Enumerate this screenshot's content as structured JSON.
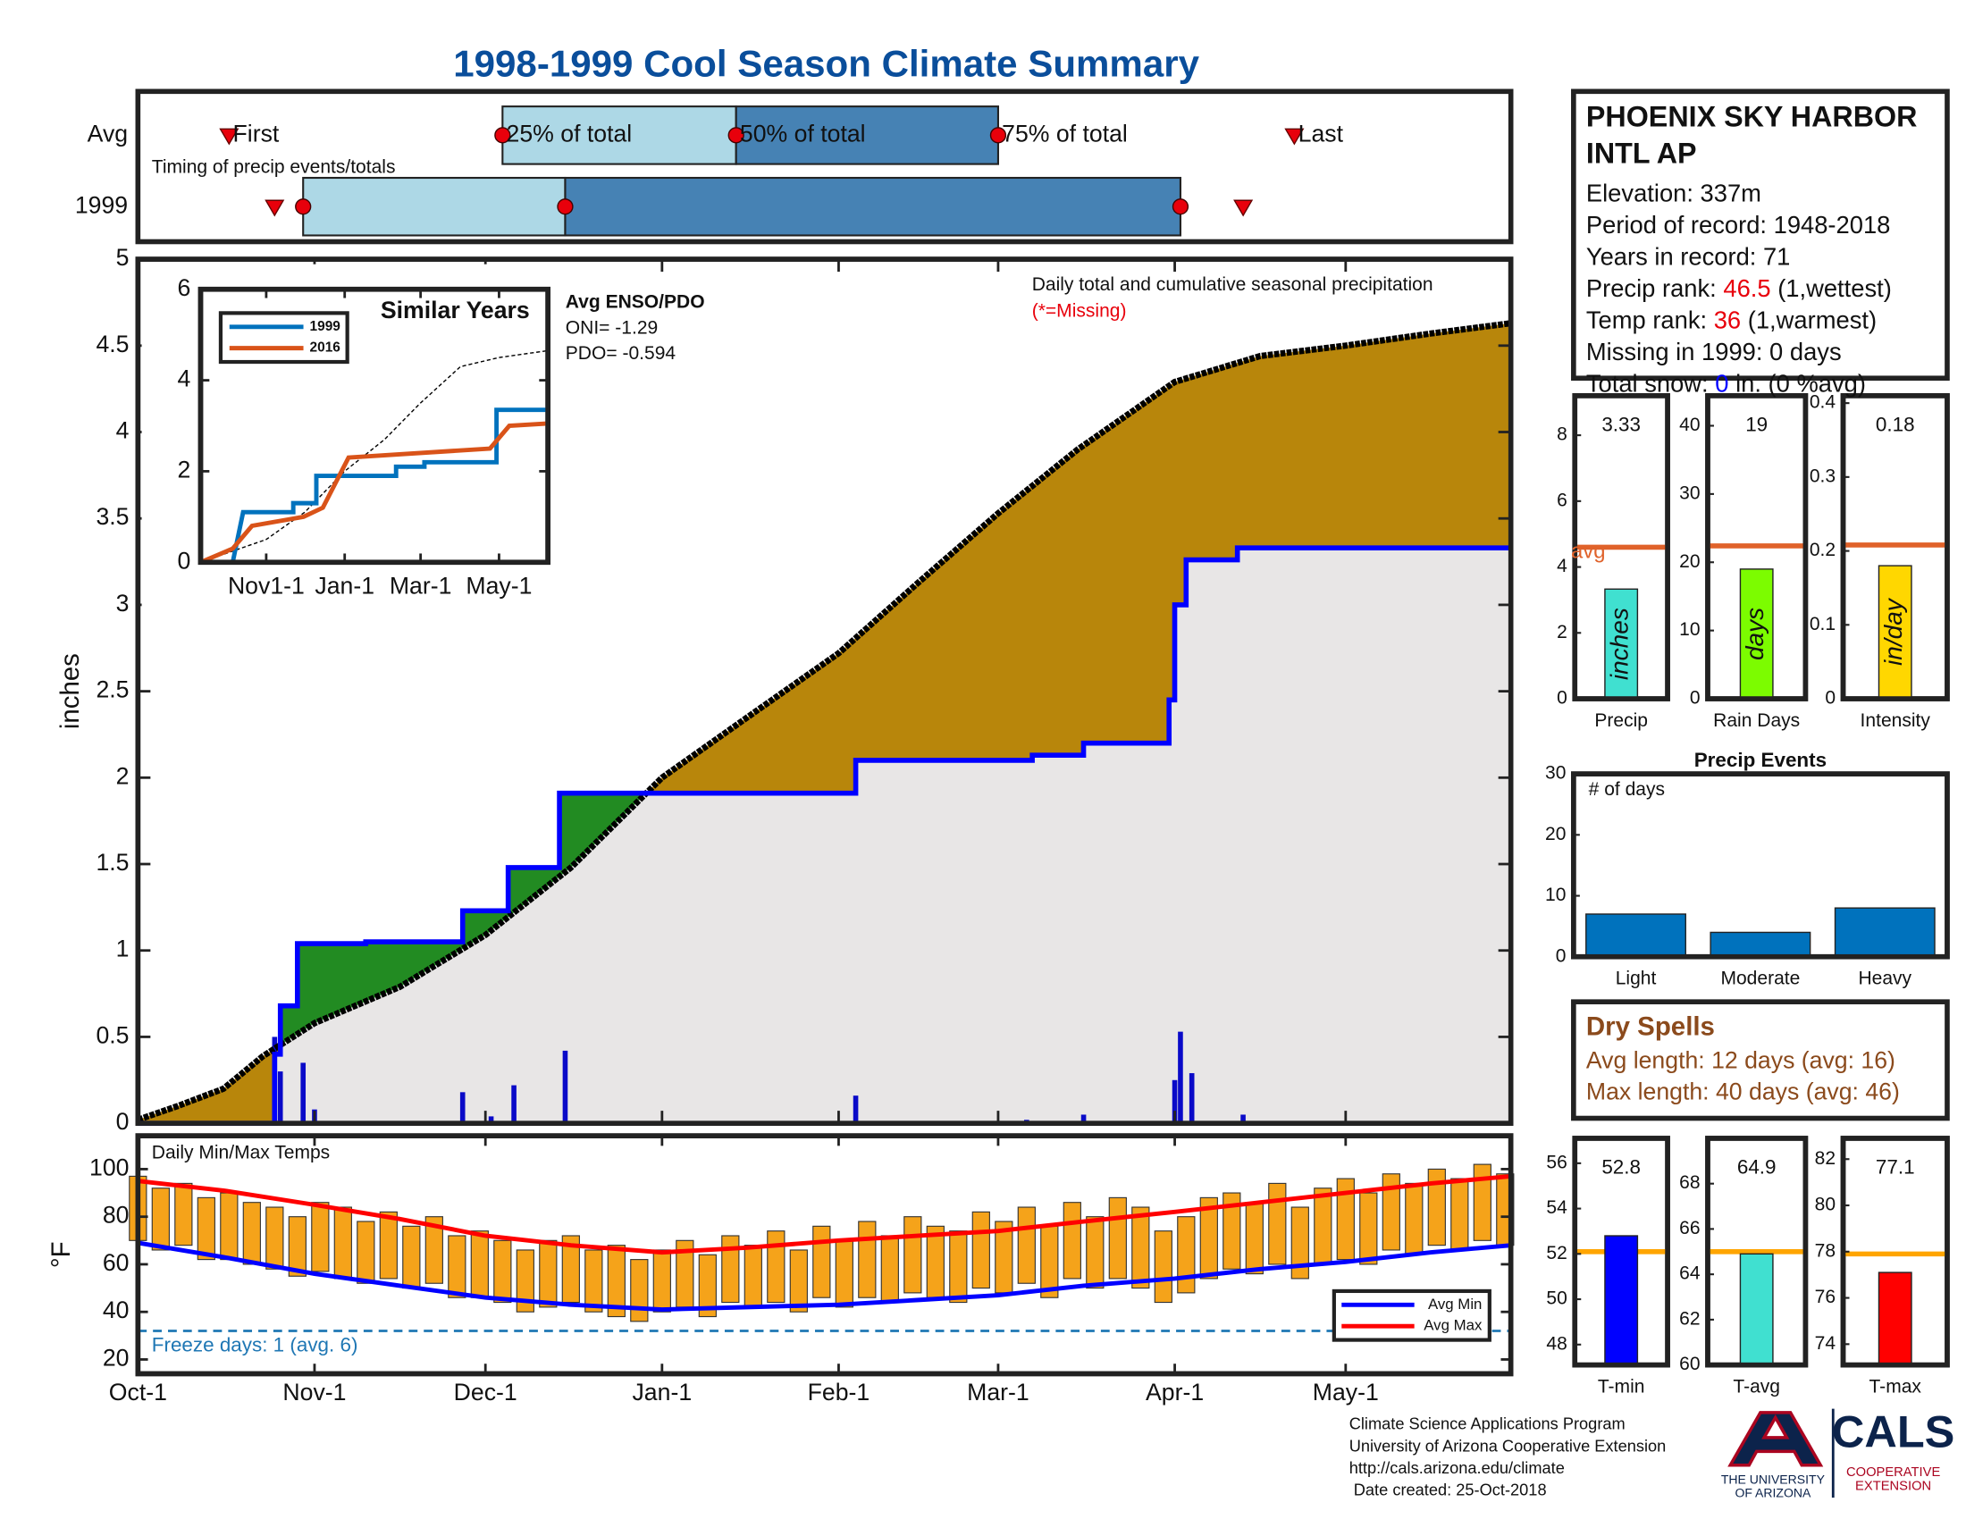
{
  "title": "1998-1999 Cool Season Climate Summary",
  "chart_data": [
    {
      "type": "timeline",
      "annotation": "Timing of precip events/totals",
      "xlim": [
        0,
        241
      ],
      "labels": [
        "First",
        "25% of total",
        "50% of total",
        "75% of total",
        "Last"
      ],
      "series": [
        {
          "name": "Avg",
          "values": [
            16,
            64,
            105,
            151,
            203
          ]
        },
        {
          "name": "1999",
          "values": [
            24,
            29,
            75,
            183,
            194
          ]
        }
      ],
      "colors": [
        "#add8e6",
        "#4682b4"
      ],
      "marker_color": "#e8000b"
    },
    {
      "type": "area",
      "ylabel": "inches",
      "annotation": "Daily total and cumulative seasonal precipitation",
      "note": "(*=Missing)",
      "xlim": [
        0,
        241
      ],
      "ylim": [
        0,
        5
      ],
      "yticks": [
        0,
        0.5,
        1,
        1.5,
        2,
        2.5,
        3,
        3.5,
        4,
        4.5,
        5
      ],
      "average": {
        "color": "#000000",
        "x": [
          0,
          7,
          15,
          22,
          31,
          46,
          61,
          76,
          92,
          107,
          123,
          137,
          151,
          165,
          182,
          197,
          212,
          227,
          241
        ],
        "values": [
          0.02,
          0.1,
          0.2,
          0.39,
          0.58,
          0.79,
          1.09,
          1.48,
          2.0,
          2.35,
          2.72,
          3.13,
          3.53,
          3.9,
          4.29,
          4.44,
          4.5,
          4.57,
          4.63
        ]
      },
      "cumulative": {
        "color": "#0000ff",
        "x": [
          0,
          24,
          24,
          25,
          25,
          28,
          28,
          40,
          40,
          57,
          57,
          65,
          65,
          74,
          74,
          126,
          126,
          157,
          157,
          166,
          166,
          181,
          181,
          182,
          182,
          184,
          184,
          193,
          193,
          241
        ],
        "values": [
          0,
          0,
          0.4,
          0.4,
          0.68,
          0.68,
          1.04,
          1.04,
          1.05,
          1.05,
          1.23,
          1.23,
          1.48,
          1.48,
          1.91,
          1.91,
          2.1,
          2.1,
          2.13,
          2.13,
          2.2,
          2.2,
          2.45,
          2.45,
          3.0,
          3.0,
          3.26,
          3.26,
          3.33,
          3.33
        ]
      },
      "daily": {
        "color": "#0a0ac8",
        "x": [
          24,
          25,
          29,
          31,
          57,
          62,
          66,
          75,
          126,
          156,
          166,
          182,
          183,
          185,
          188,
          194
        ],
        "values": [
          0.5,
          0.3,
          0.35,
          0.08,
          0.18,
          0.04,
          0.22,
          0.42,
          0.16,
          0.02,
          0.05,
          0.25,
          0.53,
          0.29,
          0.01,
          0.05
        ]
      },
      "fills": {
        "deficit": "#b8860b",
        "surplus": "#228b22",
        "base": "#e8e6e6"
      }
    },
    {
      "type": "line",
      "title": "Similar Years",
      "notes": [
        "Avg ENSO/PDO",
        "ONI= -1.29",
        "PDO= -0.594"
      ],
      "xlim": [
        -20,
        250
      ],
      "xticks": [
        {
          "value": 31,
          "label": "Nov1-1"
        },
        {
          "value": 92,
          "label": "Jan-1"
        },
        {
          "value": 151,
          "label": "Mar-1"
        },
        {
          "value": 212,
          "label": "May-1"
        }
      ],
      "ylim": [
        0,
        6
      ],
      "yticks": [
        0,
        2,
        4,
        6
      ],
      "series": [
        {
          "name": "1999",
          "color": "#0072bd",
          "x": [
            -20,
            5,
            13,
            13,
            52,
            52,
            70,
            70,
            132,
            132,
            154,
            154,
            210,
            210,
            250
          ],
          "values": [
            0,
            0,
            1.1,
            1.1,
            1.1,
            1.3,
            1.3,
            1.9,
            1.9,
            2.1,
            2.1,
            2.2,
            2.2,
            3.35,
            3.35
          ]
        },
        {
          "name": "2016",
          "color": "#d95319",
          "x": [
            -20,
            5,
            20,
            20,
            60,
            60,
            75,
            75,
            95,
            95,
            205,
            205,
            220,
            220,
            250
          ],
          "values": [
            0,
            0.3,
            0.8,
            0.8,
            1.0,
            1.0,
            1.2,
            1.2,
            2.3,
            2.3,
            2.5,
            2.5,
            3.0,
            3.0,
            3.05
          ]
        }
      ],
      "average": {
        "color": "#000000",
        "x": [
          -20,
          31,
          61,
          92,
          123,
          151,
          182,
          212,
          250
        ],
        "values": [
          0,
          0.5,
          1.1,
          2.0,
          2.7,
          3.5,
          4.3,
          4.5,
          4.65
        ]
      }
    },
    {
      "type": "range",
      "title": "Daily Min/Max Temps",
      "ylabel": "°F",
      "xlim": [
        0,
        241
      ],
      "xticks": [
        {
          "value": 0,
          "label": "Oct-1"
        },
        {
          "value": 31,
          "label": "Nov-1"
        },
        {
          "value": 61,
          "label": "Dec-1"
        },
        {
          "value": 92,
          "label": "Jan-1"
        },
        {
          "value": 123,
          "label": "Feb-1"
        },
        {
          "value": 151,
          "label": "Mar-1"
        },
        {
          "value": 182,
          "label": "Apr-1"
        },
        {
          "value": 212,
          "label": "May-1"
        }
      ],
      "ylim": [
        14,
        114
      ],
      "yticks": [
        20,
        40,
        60,
        80,
        100
      ],
      "bar_color": "#f5a31a",
      "x": [
        0,
        4,
        8,
        12,
        16,
        20,
        24,
        28,
        32,
        36,
        40,
        44,
        48,
        52,
        56,
        60,
        64,
        68,
        72,
        76,
        80,
        84,
        88,
        92,
        96,
        100,
        104,
        108,
        112,
        116,
        120,
        124,
        128,
        132,
        136,
        140,
        144,
        148,
        152,
        156,
        160,
        164,
        168,
        172,
        176,
        180,
        184,
        188,
        192,
        196,
        200,
        204,
        208,
        212,
        216,
        220,
        224,
        228,
        232,
        236,
        240
      ],
      "max": [
        97,
        92,
        94,
        88,
        90,
        86,
        84,
        80,
        86,
        84,
        78,
        82,
        76,
        80,
        72,
        74,
        70,
        66,
        70,
        72,
        66,
        68,
        62,
        66,
        70,
        64,
        72,
        68,
        74,
        66,
        76,
        70,
        78,
        72,
        80,
        76,
        74,
        82,
        78,
        84,
        76,
        86,
        80,
        88,
        84,
        74,
        80,
        88,
        90,
        86,
        94,
        84,
        92,
        96,
        90,
        98,
        94,
        100,
        96,
        102,
        98
      ],
      "min": [
        70,
        66,
        68,
        62,
        62,
        60,
        58,
        55,
        57,
        54,
        52,
        54,
        50,
        52,
        46,
        46,
        44,
        40,
        42,
        44,
        40,
        38,
        36,
        40,
        42,
        38,
        44,
        42,
        44,
        40,
        46,
        42,
        46,
        44,
        48,
        46,
        44,
        50,
        48,
        52,
        46,
        54,
        50,
        54,
        50,
        44,
        48,
        54,
        58,
        56,
        60,
        54,
        60,
        62,
        60,
        66,
        64,
        68,
        66,
        70,
        68
      ],
      "series": [
        {
          "name": "Avg Min",
          "color": "#0000ff",
          "x": [
            0,
            15,
            31,
            46,
            61,
            76,
            92,
            107,
            123,
            137,
            151,
            166,
            182,
            197,
            212,
            227,
            241
          ],
          "values": [
            69,
            63,
            56,
            51,
            46,
            43,
            41,
            42,
            43,
            45,
            47,
            51,
            54,
            58,
            61,
            65,
            68
          ]
        },
        {
          "name": "Avg Max",
          "color": "#ff0000",
          "x": [
            0,
            15,
            31,
            46,
            61,
            76,
            92,
            107,
            123,
            137,
            151,
            166,
            182,
            197,
            212,
            227,
            241
          ],
          "values": [
            95,
            91,
            85,
            79,
            72,
            68,
            65,
            67,
            70,
            72,
            74,
            78,
            82,
            86,
            90,
            94,
            97
          ]
        }
      ],
      "freeze": 32,
      "freeze_label": "Freeze days: 1 (avg. 6)",
      "freeze_color": "#1f77b4",
      "legend": "lower right"
    },
    {
      "type": "bar",
      "categories": [
        "Precip"
      ],
      "values": [
        3.33
      ],
      "axis_label": "inches",
      "avg": 4.6,
      "avg_label": "avg",
      "ylim": [
        0,
        9.2
      ],
      "yticks": [
        0,
        2,
        4,
        6,
        8
      ],
      "color": "#40e0d0",
      "avg_color": "#e0622a"
    },
    {
      "type": "bar",
      "categories": [
        "Rain Days"
      ],
      "values": [
        19
      ],
      "axis_label": "days",
      "avg": 22.4,
      "ylim": [
        0,
        44.4
      ],
      "yticks": [
        0,
        10,
        20,
        30,
        40
      ],
      "color": "#7cfc00",
      "avg_color": "#e0622a"
    },
    {
      "type": "bar",
      "categories": [
        "Intensity"
      ],
      "values": [
        0.18
      ],
      "axis_label": "in/day",
      "avg": 0.208,
      "ylim": [
        0,
        0.41
      ],
      "yticks": [
        0,
        0.1,
        0.2,
        0.3,
        0.4
      ],
      "color": "#ffd700",
      "avg_color": "#e0622a"
    },
    {
      "type": "bar",
      "title": "Precip Events",
      "annotation": "# of days",
      "categories": [
        "Light",
        "Moderate",
        "Heavy"
      ],
      "values": [
        7,
        4,
        8
      ],
      "ylim": [
        0,
        30
      ],
      "yticks": [
        0,
        10,
        20,
        30
      ],
      "color": "#0072bd"
    },
    {
      "type": "bar",
      "categories": [
        "T-min"
      ],
      "values": [
        52.8
      ],
      "avg": 52.1,
      "ylim": [
        47.1,
        57.1
      ],
      "yticks": [
        48,
        50,
        52,
        54,
        56
      ],
      "color": "#0000ff",
      "avg_color": "#ffa500"
    },
    {
      "type": "bar",
      "categories": [
        "T-avg"
      ],
      "values": [
        64.9
      ],
      "avg": 65.0,
      "ylim": [
        60,
        70
      ],
      "yticks": [
        60,
        62,
        64,
        66,
        68
      ],
      "color": "#40e0d0",
      "avg_color": "#ffa500"
    },
    {
      "type": "bar",
      "categories": [
        "T-max"
      ],
      "values": [
        77.1
      ],
      "avg": 77.9,
      "ylim": [
        73.1,
        82.9
      ],
      "yticks": [
        74,
        76,
        78,
        80,
        82
      ],
      "color": "#ff0000",
      "avg_color": "#ffa500"
    }
  ],
  "station": {
    "name": [
      "PHOENIX SKY HARBOR",
      "INTL AP"
    ],
    "lines": [
      [
        "Elevation: 337m"
      ],
      [
        "Period of record: 1948-2018"
      ],
      [
        "Years in record: 71"
      ],
      [
        "Precip rank: ",
        "46.5",
        " (1,wettest)"
      ],
      [
        "Temp rank: ",
        "36",
        " (1,warmest)"
      ],
      [
        "Missing in 1999: 0 days"
      ],
      [
        "Total snow: ",
        "0",
        " in. (0 %avg)"
      ]
    ]
  },
  "dry_spells": {
    "title": "Dry Spells",
    "lines": [
      "Avg length: 12 days (avg: 16)",
      "Max length: 40 days (avg: 46)"
    ]
  },
  "footer": [
    "Climate Science Applications Program",
    "University of Arizona Cooperative Extension",
    "http://cals.arizona.edu/climate",
    " Date created: 25-Oct-2018"
  ],
  "logos": {
    "university": [
      "THE UNIVERSITY",
      "OF ARIZONA"
    ],
    "cals": "CALS",
    "extension": [
      "COOPERATIVE",
      "EXTENSION"
    ]
  }
}
